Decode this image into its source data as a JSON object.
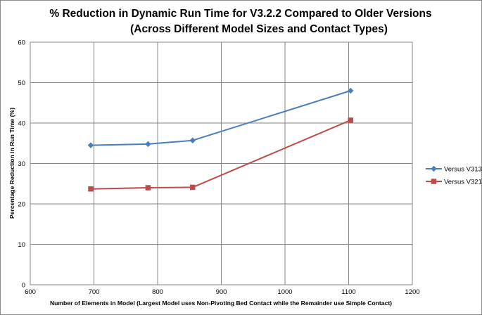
{
  "chart_data": {
    "type": "line",
    "title": "% Reduction in Dynamic Run Time for V3.2.2 Compared to Older Versions",
    "subtitle": "(Across Different Model Sizes and Contact Types)",
    "xlabel": "Number of  Elements in Model (Largest Model uses Non-Pivoting Bed Contact while the Remainder use Simple Contact)",
    "ylabel": "Percentage Reduction in Run Time (%)",
    "xlim": [
      600,
      1200
    ],
    "ylim": [
      0,
      60
    ],
    "xticks": [
      600,
      700,
      800,
      900,
      1000,
      1100,
      1200
    ],
    "yticks": [
      0,
      10,
      20,
      30,
      40,
      50,
      60
    ],
    "grid": true,
    "legend_position": "right",
    "series": [
      {
        "name": "Versus V313",
        "color": "#4a7ebb",
        "marker": "diamond",
        "x": [
          695,
          785,
          855,
          1103
        ],
        "y": [
          34.5,
          34.8,
          35.7,
          48.0
        ]
      },
      {
        "name": "Versus V321",
        "color": "#be4b48",
        "marker": "square",
        "x": [
          695,
          785,
          855,
          1103
        ],
        "y": [
          23.7,
          24.0,
          24.1,
          40.7
        ]
      }
    ]
  }
}
